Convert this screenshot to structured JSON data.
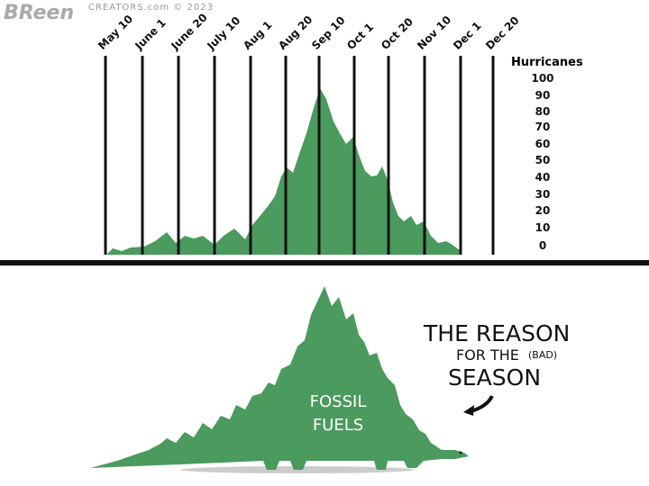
{
  "signature": "BReen",
  "credit": "CREATORS.com © 2023",
  "chart": {
    "y_title": "Hurricanes",
    "y_ticks": [
      "100",
      "90",
      "80",
      "70",
      "60",
      "50",
      "40",
      "30",
      "20",
      "10",
      "0"
    ],
    "dates": [
      "May 10",
      "June 1",
      "June 20",
      "July 10",
      "Aug 1",
      "Aug 20",
      "Sep 10",
      "Oct 1",
      "Oct 20",
      "Nov 10",
      "Dec 1",
      "Dec 20"
    ]
  },
  "dino_text": {
    "line1": "FOSSIL",
    "line2": "FUELS"
  },
  "caption": {
    "line1": "THE REASON",
    "line2": "FOR THE",
    "aside": "(BAD)",
    "line3": "SEASON"
  },
  "colors": {
    "green": "#4b9a5e",
    "ink": "#111111"
  }
}
